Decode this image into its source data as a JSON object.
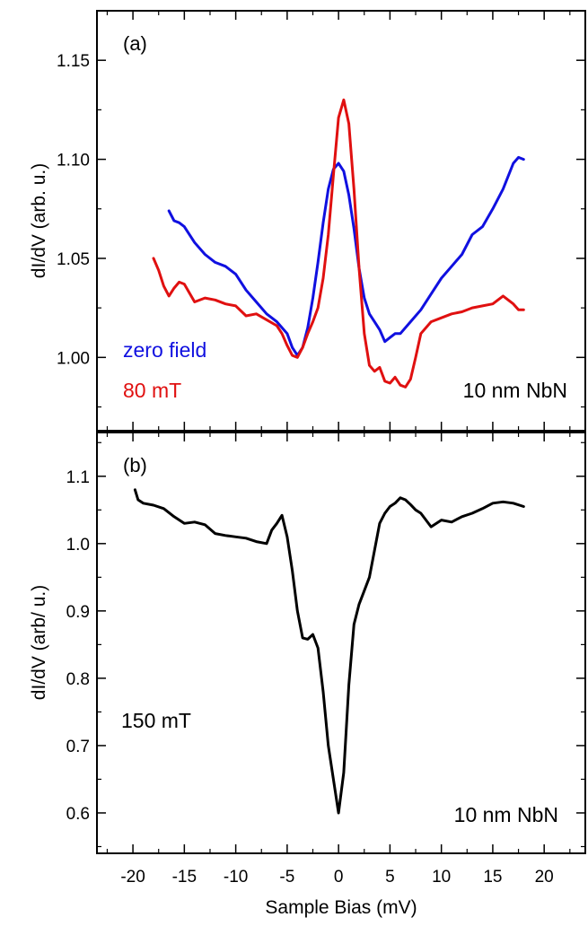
{
  "chart_data": [
    {
      "type": "line",
      "panel_label": "(a)",
      "ylabel": "dI/dV (arb. u.)",
      "xlabel": "",
      "xlim": [
        -23.5,
        24
      ],
      "ylim": [
        0.963,
        1.175
      ],
      "yticks": [
        1.0,
        1.05,
        1.1,
        1.15
      ],
      "ytick_labels": [
        "1.00",
        "1.05",
        "1.10",
        "1.15"
      ],
      "grid": false,
      "annotations": {
        "series_label_blue": "zero field",
        "series_label_red": "80 mT",
        "sample": "10 nm NbN"
      },
      "series": [
        {
          "name": "zero field",
          "color": "#1010e0",
          "x": [
            -16.5,
            -16.0,
            -15.5,
            -15.0,
            -14.0,
            -13.0,
            -12.0,
            -11.0,
            -10.0,
            -9.0,
            -8.0,
            -7.0,
            -6.0,
            -5.0,
            -4.5,
            -4.0,
            -3.5,
            -3.0,
            -2.5,
            -2.0,
            -1.5,
            -1.0,
            -0.5,
            0.0,
            0.5,
            1.0,
            1.5,
            2.0,
            2.5,
            3.0,
            3.5,
            4.0,
            4.5,
            5.0,
            5.5,
            6.0,
            7.0,
            8.0,
            9.0,
            10.0,
            11.0,
            12.0,
            13.0,
            14.0,
            15.0,
            16.0,
            17.0,
            17.5,
            18.0
          ],
          "y": [
            1.074,
            1.069,
            1.068,
            1.066,
            1.058,
            1.052,
            1.048,
            1.046,
            1.042,
            1.034,
            1.028,
            1.022,
            1.018,
            1.012,
            1.005,
            1.001,
            1.005,
            1.015,
            1.03,
            1.048,
            1.068,
            1.085,
            1.095,
            1.098,
            1.094,
            1.082,
            1.065,
            1.045,
            1.03,
            1.022,
            1.018,
            1.014,
            1.008,
            1.01,
            1.012,
            1.012,
            1.018,
            1.024,
            1.032,
            1.04,
            1.046,
            1.052,
            1.062,
            1.066,
            1.075,
            1.085,
            1.098,
            1.101,
            1.1
          ]
        },
        {
          "name": "80 mT",
          "color": "#e01010",
          "x": [
            -18.0,
            -17.5,
            -17.0,
            -16.5,
            -16.0,
            -15.5,
            -15.0,
            -14.0,
            -13.0,
            -12.0,
            -11.0,
            -10.0,
            -9.0,
            -8.0,
            -7.0,
            -6.0,
            -5.5,
            -5.0,
            -4.5,
            -4.0,
            -3.5,
            -3.0,
            -2.5,
            -2.0,
            -1.5,
            -1.0,
            -0.5,
            0.0,
            0.5,
            1.0,
            1.5,
            2.0,
            2.5,
            3.0,
            3.5,
            4.0,
            4.5,
            5.0,
            5.5,
            6.0,
            6.5,
            7.0,
            7.5,
            8.0,
            9.0,
            10.0,
            11.0,
            12.0,
            13.0,
            14.0,
            15.0,
            16.0,
            17.0,
            17.5,
            18.0
          ],
          "y": [
            1.05,
            1.044,
            1.036,
            1.031,
            1.035,
            1.038,
            1.037,
            1.028,
            1.03,
            1.029,
            1.027,
            1.026,
            1.021,
            1.022,
            1.019,
            1.016,
            1.012,
            1.006,
            1.001,
            1.0,
            1.005,
            1.012,
            1.018,
            1.025,
            1.04,
            1.062,
            1.092,
            1.121,
            1.13,
            1.118,
            1.085,
            1.045,
            1.012,
            0.996,
            0.993,
            0.995,
            0.988,
            0.987,
            0.99,
            0.986,
            0.985,
            0.989,
            1.0,
            1.012,
            1.018,
            1.02,
            1.022,
            1.023,
            1.025,
            1.026,
            1.027,
            1.031,
            1.027,
            1.024,
            1.024
          ]
        }
      ]
    },
    {
      "type": "line",
      "panel_label": "(b)",
      "ylabel": "dI/dV (arb/ u.)",
      "xlabel": "Sample Bias (mV)",
      "xlim": [
        -23.5,
        24
      ],
      "ylim": [
        0.54,
        1.165
      ],
      "xticks": [
        -20,
        -15,
        -10,
        -5,
        0,
        5,
        10,
        15,
        20
      ],
      "xtick_labels": [
        "-20",
        "-15",
        "-10",
        "-5",
        "0",
        "5",
        "10",
        "15",
        "20"
      ],
      "yticks": [
        0.6,
        0.7,
        0.8,
        0.9,
        1.0,
        1.1
      ],
      "ytick_labels": [
        "0.6",
        "0.7",
        "0.8",
        "0.9",
        "1.0",
        "1.1"
      ],
      "grid": false,
      "annotations": {
        "field": "150 mT",
        "sample": "10 nm NbN"
      },
      "series": [
        {
          "name": "150 mT",
          "color": "#000000",
          "x": [
            -19.8,
            -19.5,
            -19.0,
            -18.0,
            -17.0,
            -16.0,
            -15.0,
            -14.0,
            -13.0,
            -12.0,
            -11.0,
            -10.0,
            -9.0,
            -8.0,
            -7.0,
            -6.5,
            -6.0,
            -5.5,
            -5.0,
            -4.5,
            -4.0,
            -3.5,
            -3.0,
            -2.5,
            -2.0,
            -1.5,
            -1.0,
            -0.5,
            0.0,
            0.5,
            1.0,
            1.5,
            2.0,
            2.5,
            3.0,
            3.5,
            4.0,
            4.5,
            5.0,
            5.5,
            6.0,
            6.5,
            7.0,
            7.5,
            8.0,
            9.0,
            10.0,
            11.0,
            12.0,
            13.0,
            14.0,
            15.0,
            16.0,
            17.0,
            18.0
          ],
          "y": [
            1.08,
            1.065,
            1.06,
            1.057,
            1.052,
            1.04,
            1.03,
            1.032,
            1.028,
            1.015,
            1.012,
            1.01,
            1.008,
            1.003,
            1.0,
            1.02,
            1.03,
            1.042,
            1.01,
            0.96,
            0.9,
            0.86,
            0.858,
            0.865,
            0.845,
            0.78,
            0.7,
            0.65,
            0.6,
            0.66,
            0.79,
            0.88,
            0.91,
            0.93,
            0.95,
            0.99,
            1.03,
            1.045,
            1.055,
            1.06,
            1.068,
            1.065,
            1.058,
            1.05,
            1.045,
            1.025,
            1.035,
            1.032,
            1.04,
            1.045,
            1.052,
            1.06,
            1.062,
            1.06,
            1.055
          ]
        }
      ]
    }
  ]
}
